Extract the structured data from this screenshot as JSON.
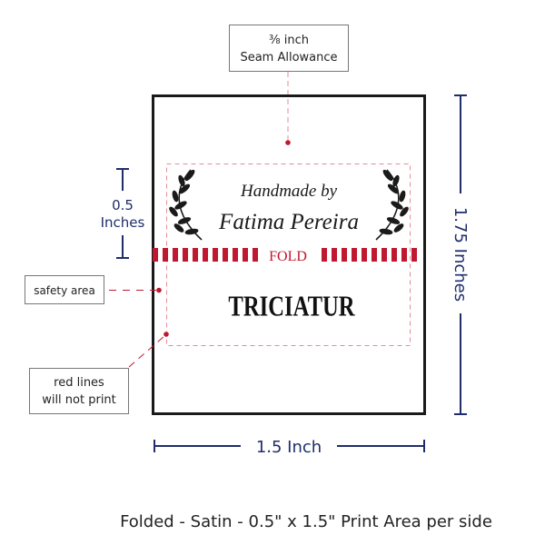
{
  "colors": {
    "navy": "#1f2d6b",
    "red": "#c0182e",
    "pink": "#e88a98",
    "black": "#1a1a1a",
    "box_border": "#777777"
  },
  "seam_callout": {
    "line1": "⅜ inch",
    "line2": "Seam Allowance"
  },
  "height_half": {
    "line1": "0.5",
    "line2": "Inches"
  },
  "safety_callout": {
    "label": "safety area"
  },
  "redlines_callout": {
    "line1": "red lines",
    "line2": "will not print"
  },
  "label": {
    "line1": "Handmade by",
    "line2": "Fatima Pereira",
    "fold": "FOLD",
    "brand": "TRICIATUR",
    "icons": [
      "laurel-branch-left",
      "laurel-branch-right"
    ]
  },
  "dim_height": "1.75 Inches",
  "dim_width": "1.5 Inch",
  "caption": "Folded - Satin - 0.5\" x 1.5\" Print Area per side"
}
